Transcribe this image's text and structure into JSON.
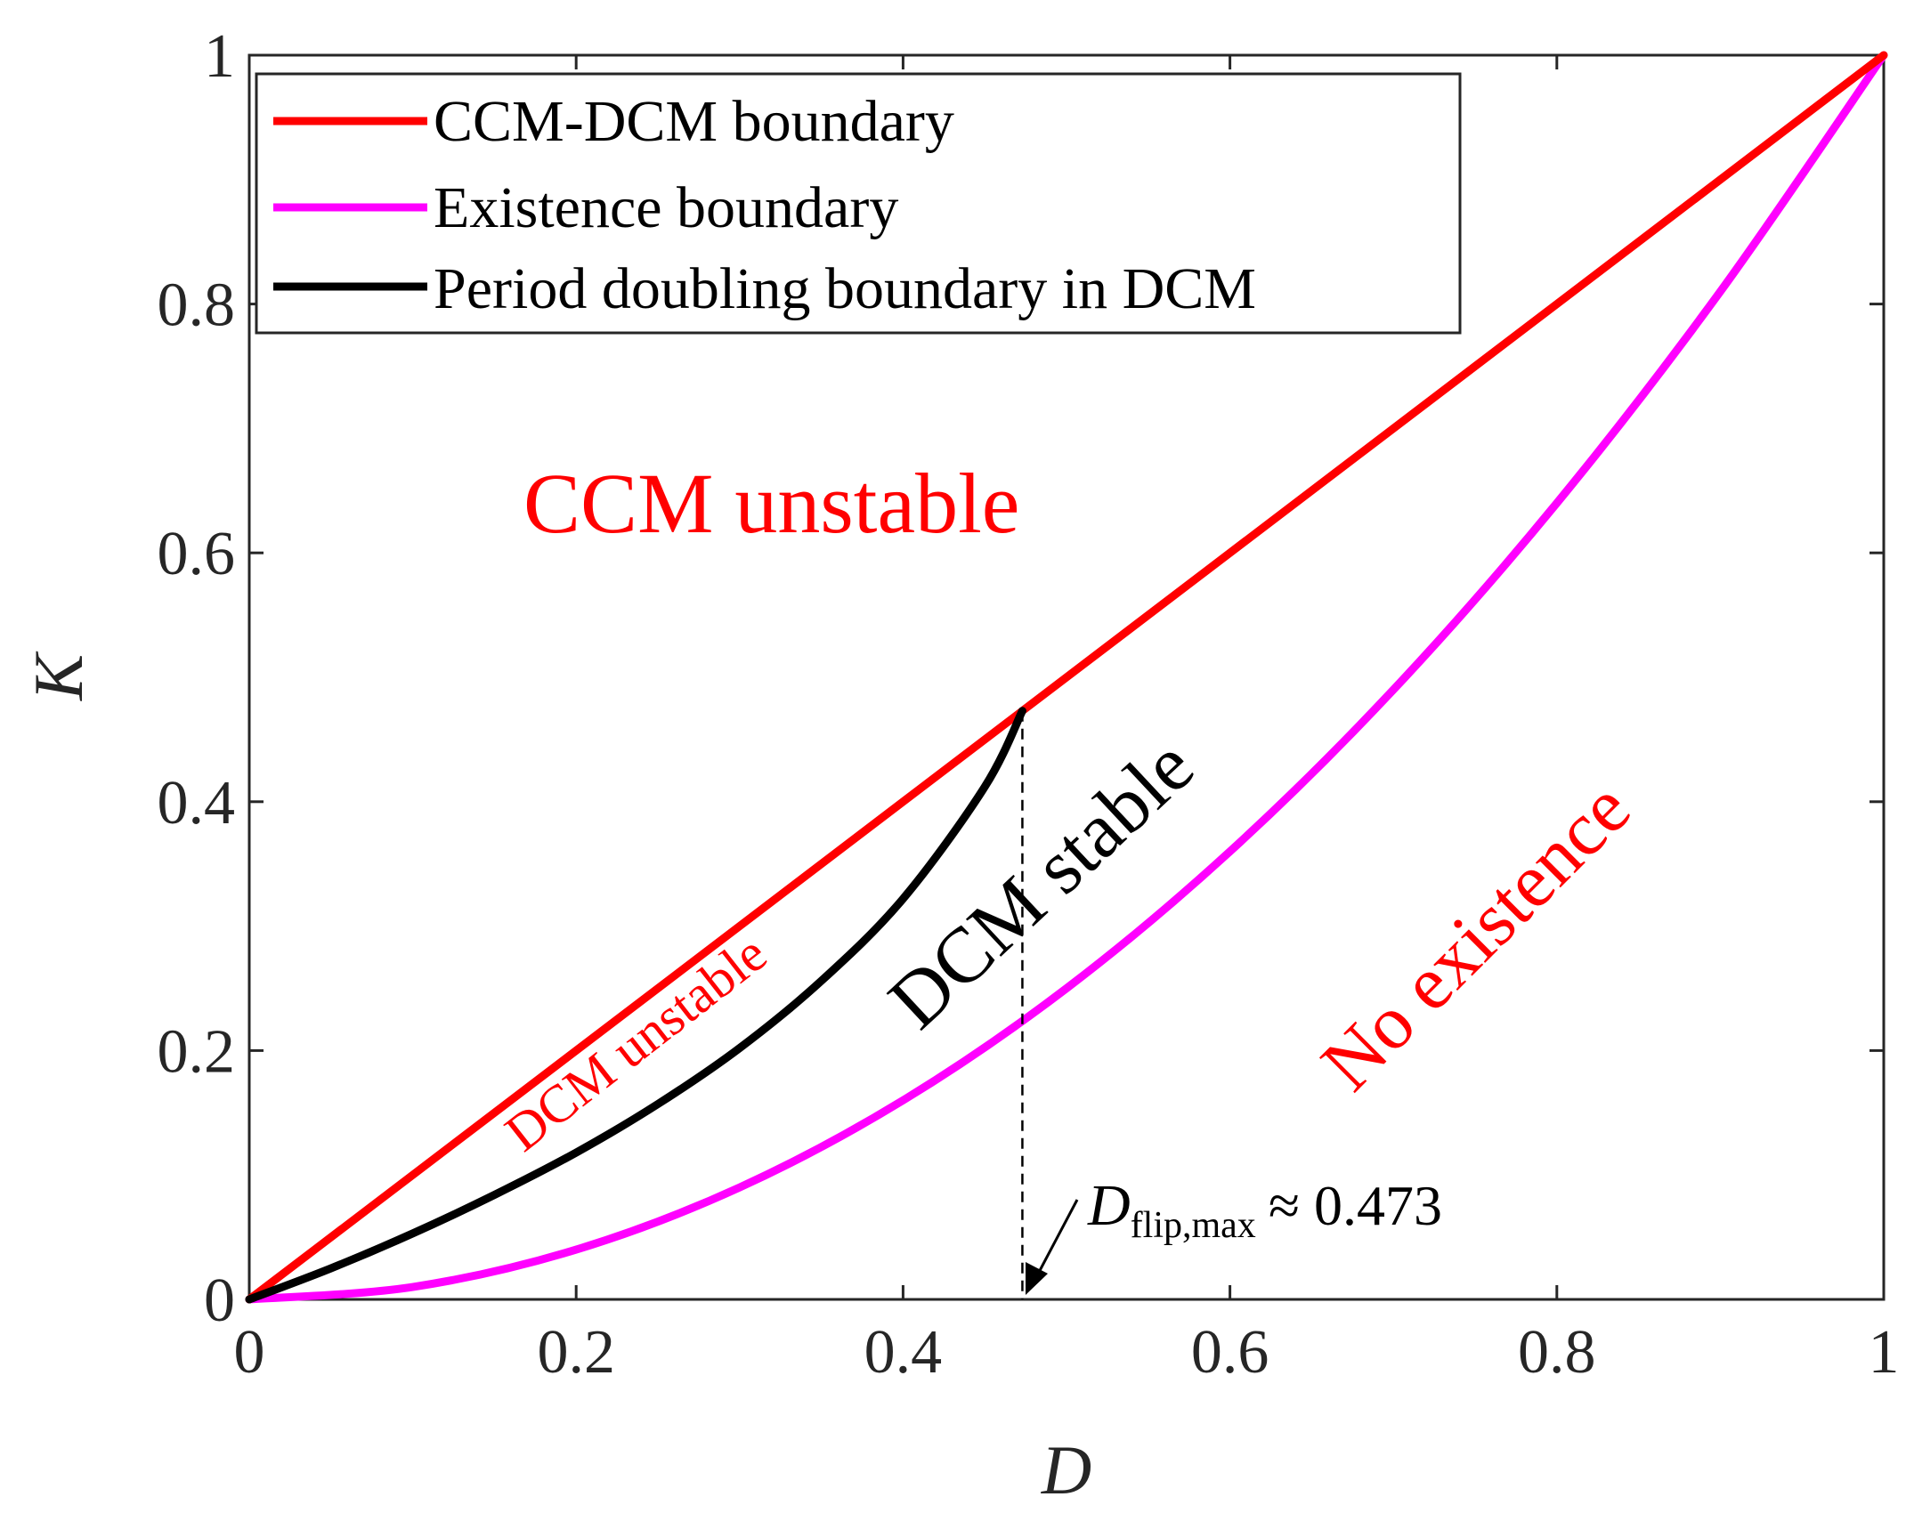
{
  "chart_data": {
    "type": "line",
    "title": "",
    "xlabel": "D",
    "ylabel": "K",
    "xlim": [
      0,
      1
    ],
    "ylim": [
      0,
      1
    ],
    "xticks": [
      "0",
      "0.2",
      "0.4",
      "0.6",
      "0.8",
      "1"
    ],
    "yticks": [
      "0",
      "0.2",
      "0.4",
      "0.6",
      "0.8",
      "1"
    ],
    "grid": false,
    "legend_position": "top-left",
    "series": [
      {
        "name": "CCM-DCM boundary",
        "color": "#ff0000",
        "x": [
          0,
          1
        ],
        "y": [
          0,
          1
        ]
      },
      {
        "name": "Existence boundary",
        "color": "#ff00ff",
        "x": [
          0,
          0.1,
          0.2,
          0.3,
          0.4,
          0.5,
          0.6,
          0.7,
          0.8,
          0.9,
          1
        ],
        "y": [
          0,
          0.01,
          0.04,
          0.09,
          0.16,
          0.25,
          0.36,
          0.49,
          0.64,
          0.81,
          1
        ]
      },
      {
        "name": "Period doubling boundary in DCM",
        "color": "#000000",
        "x": [
          0,
          0.05,
          0.1,
          0.15,
          0.2,
          0.25,
          0.3,
          0.35,
          0.4,
          0.45,
          0.473
        ],
        "y": [
          0,
          0.025,
          0.053,
          0.084,
          0.118,
          0.157,
          0.202,
          0.256,
          0.322,
          0.412,
          0.473
        ]
      }
    ],
    "annotations": {
      "ccm_unstable": "CCM unstable",
      "dcm_unstable": "DCM unstable",
      "dcm_stable": "DCM stable",
      "no_existence": "No existence",
      "dflip_symbol": "D",
      "dflip_subscript": "flip,max",
      "dflip_relation": "≈ 0.473",
      "dflip_value": 0.473
    }
  }
}
